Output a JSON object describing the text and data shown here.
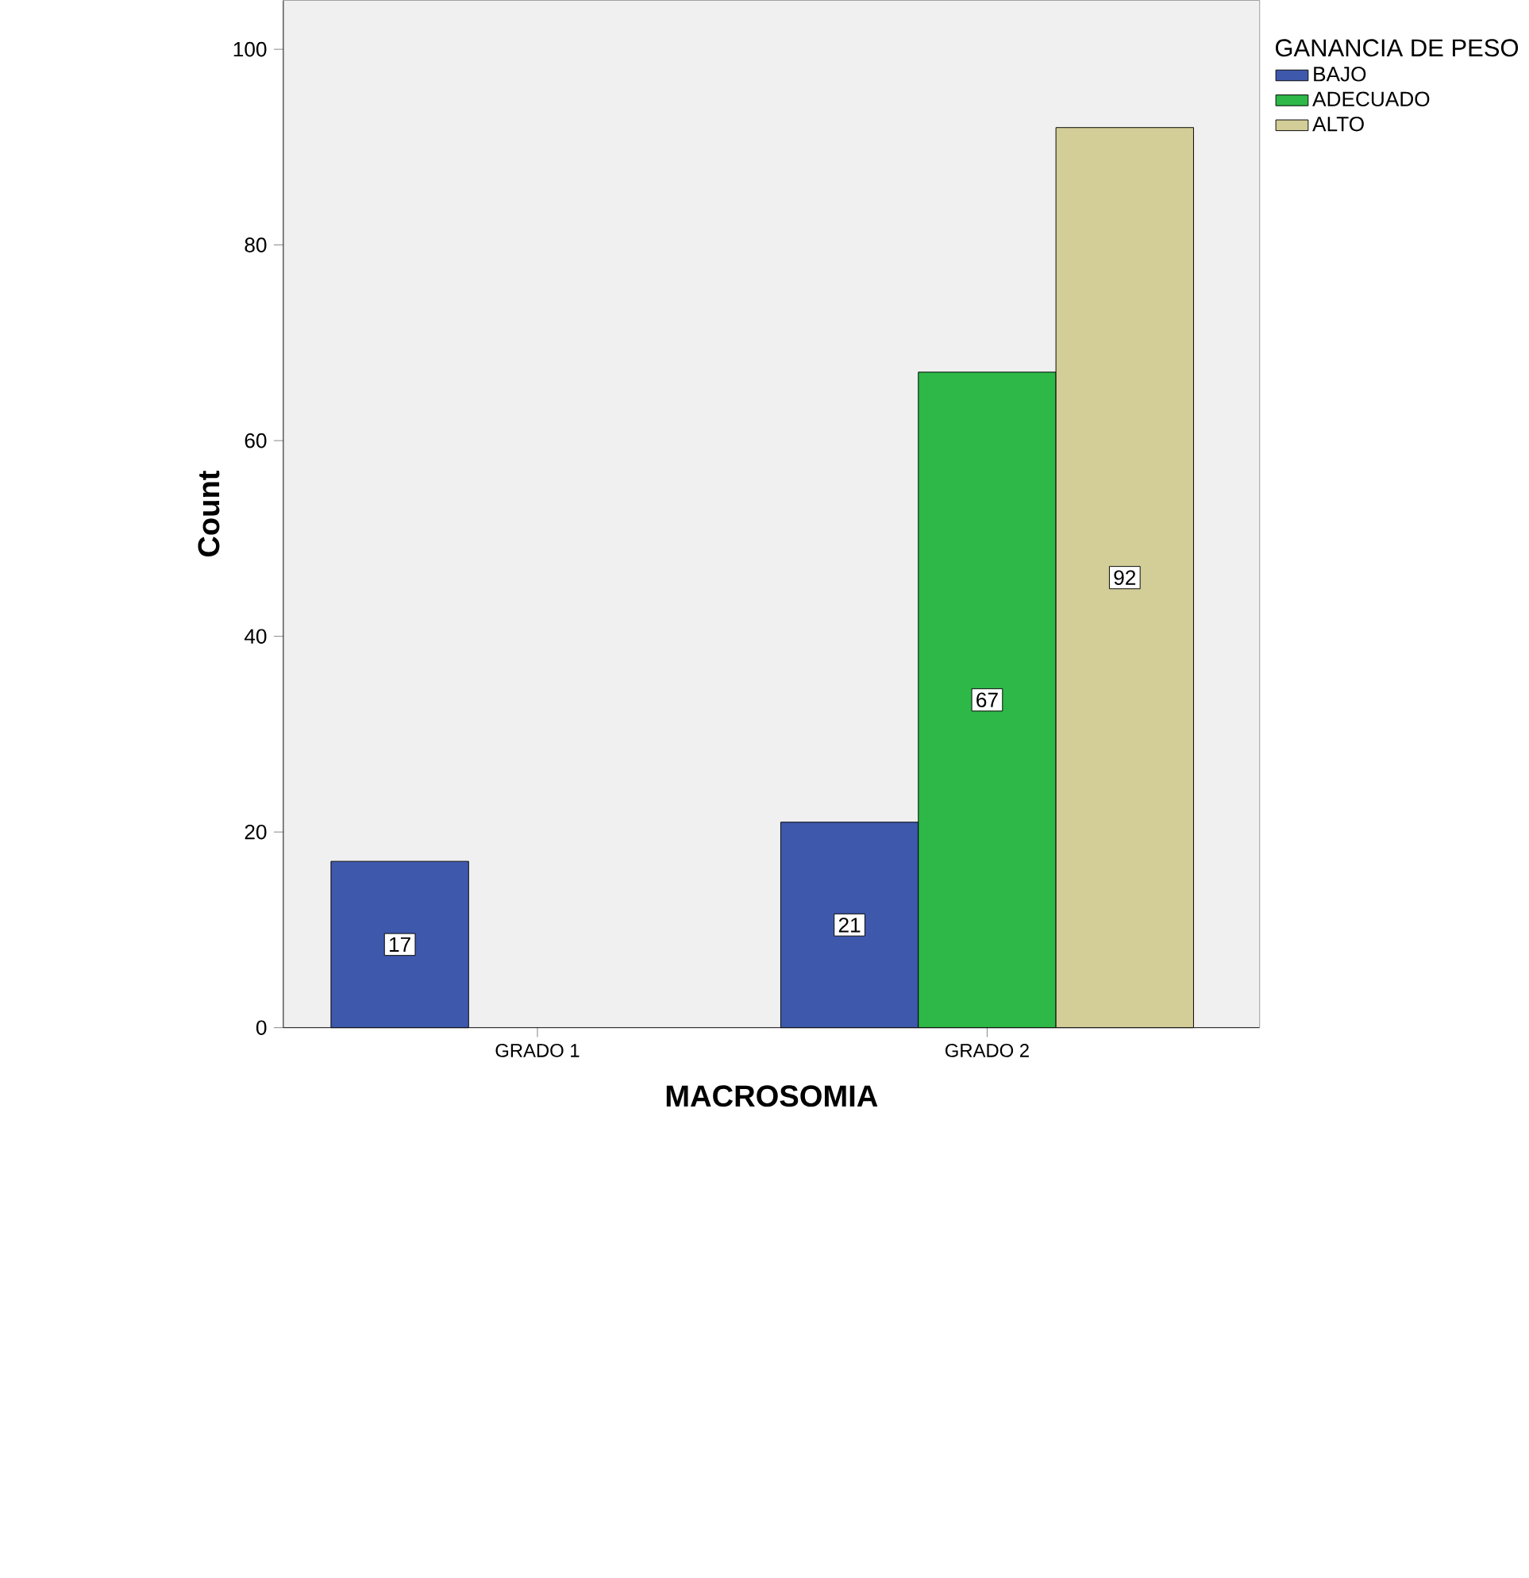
{
  "chart_data": {
    "type": "bar",
    "xlabel": "MACROSOMIA",
    "ylabel": "Count",
    "legend_title": "GANANCIA DE PESO",
    "categories": [
      "GRADO 1",
      "GRADO 2"
    ],
    "series": [
      {
        "name": "BAJO",
        "color": "#3e58ac",
        "values": [
          17,
          21
        ]
      },
      {
        "name": "ADECUADO",
        "color": "#2eb848",
        "values": [
          null,
          67
        ]
      },
      {
        "name": "ALTO",
        "color": "#d3ce97",
        "values": [
          null,
          92
        ]
      }
    ],
    "ylim": [
      0,
      105
    ],
    "yticks": [
      0,
      20,
      40,
      60,
      80,
      100
    ],
    "data_labels": true,
    "legend": "right",
    "grid": false
  }
}
